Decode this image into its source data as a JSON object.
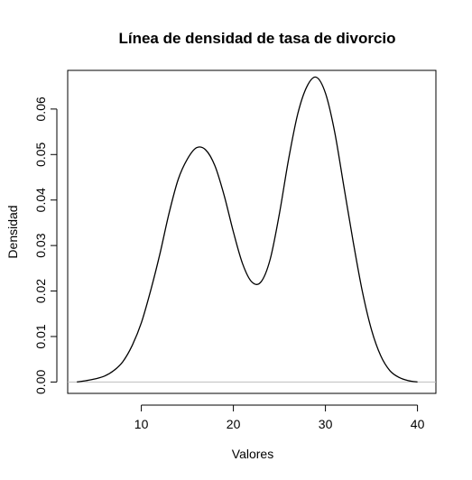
{
  "chart_data": {
    "type": "line",
    "title": "Línea de densidad de tasa de divorcio",
    "xlabel": "Valores",
    "ylabel": "Densidad",
    "xlim": [
      2,
      42
    ],
    "ylim": [
      -0.0025,
      0.0685
    ],
    "x_ticks": [
      10,
      20,
      30,
      40
    ],
    "x_tick_labels": [
      "10",
      "20",
      "30",
      "40"
    ],
    "y_ticks": [
      0.0,
      0.01,
      0.02,
      0.03,
      0.04,
      0.05,
      0.06
    ],
    "y_tick_labels": [
      "0.00",
      "0.01",
      "0.02",
      "0.03",
      "0.04",
      "0.05",
      "0.06"
    ],
    "baseline_y": 0,
    "grid": false,
    "legend": "none",
    "colors": {
      "line": "#000000",
      "baseline": "#bebebe"
    },
    "series": [
      {
        "x": [
          3,
          4,
          5,
          6,
          7,
          8,
          9,
          10,
          11,
          12,
          13,
          14,
          15,
          16,
          17,
          18,
          19,
          20,
          21,
          22,
          23,
          24,
          25,
          26,
          27,
          28,
          29,
          30,
          31,
          32,
          33,
          34,
          35,
          36,
          37,
          38,
          39,
          40
        ],
        "y": [
          0.0,
          0.0003,
          0.0007,
          0.0013,
          0.0025,
          0.0045,
          0.008,
          0.013,
          0.02,
          0.028,
          0.037,
          0.0445,
          0.049,
          0.0515,
          0.051,
          0.0475,
          0.041,
          0.033,
          0.026,
          0.022,
          0.022,
          0.027,
          0.037,
          0.049,
          0.059,
          0.065,
          0.067,
          0.0635,
          0.055,
          0.043,
          0.031,
          0.02,
          0.0115,
          0.0058,
          0.0025,
          0.001,
          0.0003,
          0.0
        ]
      }
    ]
  }
}
